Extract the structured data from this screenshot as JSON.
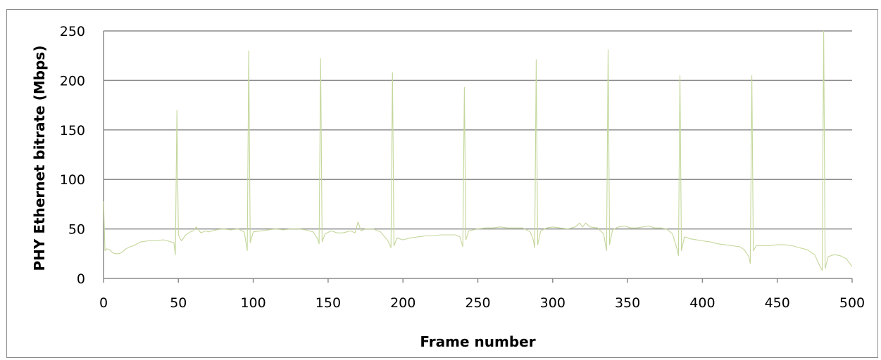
{
  "chart_data": {
    "type": "line",
    "title": "",
    "xlabel": "Frame number",
    "ylabel": "PHY Ethernet bitrate (Mbps)",
    "xlim": [
      0,
      500
    ],
    "ylim": [
      0,
      250
    ],
    "x_ticks": [
      0,
      50,
      100,
      150,
      200,
      250,
      300,
      350,
      400,
      450,
      500
    ],
    "y_ticks": [
      0,
      50,
      100,
      150,
      200,
      250
    ],
    "grid": "horizontal",
    "legend": "none",
    "series": [
      {
        "color": "#c4d79b",
        "points": [
          [
            0,
            78
          ],
          [
            1,
            28
          ],
          [
            2,
            30
          ],
          [
            4,
            29
          ],
          [
            6,
            26
          ],
          [
            8,
            25
          ],
          [
            10,
            25
          ],
          [
            12,
            26
          ],
          [
            15,
            30
          ],
          [
            18,
            32
          ],
          [
            20,
            33
          ],
          [
            25,
            37
          ],
          [
            30,
            38
          ],
          [
            35,
            38
          ],
          [
            40,
            39
          ],
          [
            45,
            37
          ],
          [
            47,
            36
          ],
          [
            48,
            24
          ],
          [
            49,
            170
          ],
          [
            50,
            44
          ],
          [
            52,
            38
          ],
          [
            55,
            44
          ],
          [
            58,
            47
          ],
          [
            60,
            48
          ],
          [
            62,
            52
          ],
          [
            65,
            46
          ],
          [
            68,
            48
          ],
          [
            70,
            47
          ],
          [
            75,
            49
          ],
          [
            80,
            50
          ],
          [
            85,
            49
          ],
          [
            90,
            50
          ],
          [
            94,
            47
          ],
          [
            96,
            28
          ],
          [
            97,
            230
          ],
          [
            98,
            36
          ],
          [
            100,
            47
          ],
          [
            105,
            48
          ],
          [
            110,
            49
          ],
          [
            115,
            50
          ],
          [
            120,
            49
          ],
          [
            125,
            50
          ],
          [
            130,
            50
          ],
          [
            135,
            49
          ],
          [
            140,
            47
          ],
          [
            143,
            40
          ],
          [
            144,
            35
          ],
          [
            145,
            222
          ],
          [
            146,
            37
          ],
          [
            148,
            45
          ],
          [
            152,
            48
          ],
          [
            156,
            46
          ],
          [
            160,
            46
          ],
          [
            165,
            48
          ],
          [
            168,
            46
          ],
          [
            170,
            57
          ],
          [
            172,
            48
          ],
          [
            175,
            50
          ],
          [
            180,
            50
          ],
          [
            185,
            47
          ],
          [
            190,
            38
          ],
          [
            192,
            31
          ],
          [
            193,
            208
          ],
          [
            194,
            33
          ],
          [
            196,
            41
          ],
          [
            200,
            39
          ],
          [
            205,
            41
          ],
          [
            210,
            42
          ],
          [
            215,
            43
          ],
          [
            220,
            43
          ],
          [
            225,
            44
          ],
          [
            230,
            44
          ],
          [
            235,
            44
          ],
          [
            238,
            42
          ],
          [
            240,
            32
          ],
          [
            241,
            193
          ],
          [
            242,
            39
          ],
          [
            244,
            48
          ],
          [
            250,
            50
          ],
          [
            255,
            51
          ],
          [
            260,
            51
          ],
          [
            265,
            52
          ],
          [
            270,
            51
          ],
          [
            275,
            51
          ],
          [
            280,
            51
          ],
          [
            285,
            47
          ],
          [
            287,
            39
          ],
          [
            288,
            31
          ],
          [
            289,
            221
          ],
          [
            290,
            34
          ],
          [
            292,
            48
          ],
          [
            296,
            51
          ],
          [
            300,
            52
          ],
          [
            305,
            51
          ],
          [
            310,
            50
          ],
          [
            315,
            52
          ],
          [
            318,
            56
          ],
          [
            320,
            52
          ],
          [
            322,
            56
          ],
          [
            325,
            52
          ],
          [
            330,
            51
          ],
          [
            334,
            45
          ],
          [
            336,
            28
          ],
          [
            337,
            231
          ],
          [
            338,
            34
          ],
          [
            340,
            49
          ],
          [
            344,
            52
          ],
          [
            348,
            53
          ],
          [
            352,
            51
          ],
          [
            356,
            51
          ],
          [
            360,
            52
          ],
          [
            364,
            53
          ],
          [
            368,
            51
          ],
          [
            372,
            51
          ],
          [
            376,
            50
          ],
          [
            380,
            45
          ],
          [
            383,
            30
          ],
          [
            384,
            23
          ],
          [
            385,
            205
          ],
          [
            386,
            28
          ],
          [
            388,
            42
          ],
          [
            392,
            40
          ],
          [
            396,
            39
          ],
          [
            400,
            38
          ],
          [
            405,
            37
          ],
          [
            410,
            35
          ],
          [
            415,
            34
          ],
          [
            420,
            33
          ],
          [
            425,
            32
          ],
          [
            428,
            29
          ],
          [
            431,
            22
          ],
          [
            432,
            15
          ],
          [
            433,
            205
          ],
          [
            434,
            28
          ],
          [
            436,
            33
          ],
          [
            440,
            33
          ],
          [
            445,
            33
          ],
          [
            450,
            34
          ],
          [
            455,
            34
          ],
          [
            460,
            33
          ],
          [
            465,
            31
          ],
          [
            470,
            29
          ],
          [
            475,
            24
          ],
          [
            478,
            14
          ],
          [
            480,
            8
          ],
          [
            481,
            250
          ],
          [
            482,
            10
          ],
          [
            484,
            22
          ],
          [
            488,
            24
          ],
          [
            492,
            23
          ],
          [
            496,
            20
          ],
          [
            500,
            12
          ]
        ]
      }
    ]
  }
}
